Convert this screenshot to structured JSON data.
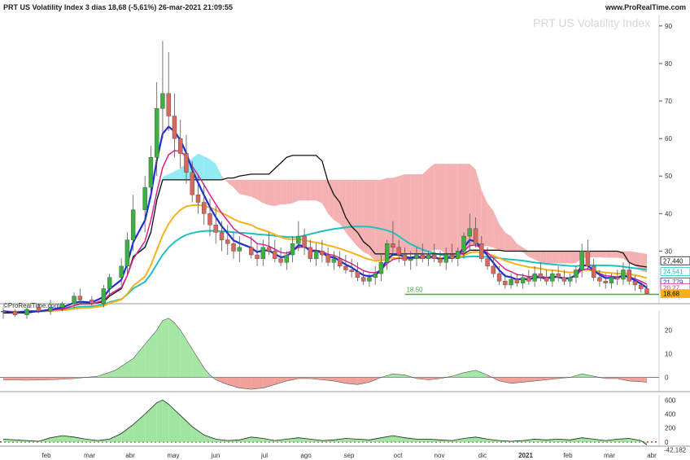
{
  "header": {
    "title": "PRT US Volatility Index 3 días 18,68 (-5,61%) 26-mar-2021 21:09:55",
    "site": "www.ProRealTime.com",
    "watermark": "PRT US Volatility Index",
    "credit": "©ProRealTime.com"
  },
  "colors": {
    "up": "#3cb043",
    "down": "#d9675b",
    "blue": "#1c2fd6",
    "magenta": "#e0208a",
    "black": "#111111",
    "orange": "#f5b21b",
    "teal": "#20c0c0",
    "cloud_red": "#f3a3a3",
    "cloud_cyan": "#7fe8f0",
    "support": "#3cb043",
    "price_box": "#f5b21b"
  },
  "chart_data": [
    {
      "type": "candlestick",
      "panel": "price",
      "title": "PRT US Volatility Index 3 días",
      "x": [
        "feb",
        "mar",
        "abr",
        "may",
        "jun",
        "jul",
        "ago",
        "sep",
        "oct",
        "nov",
        "dic",
        "2021",
        "feb",
        "mar",
        "abr"
      ],
      "y_ticks": [
        30,
        40,
        50,
        60,
        70,
        80,
        90
      ],
      "ylim": [
        16,
        93
      ],
      "candles": [
        [
          0,
          14,
          15,
          12,
          14
        ],
        [
          2,
          14,
          14.5,
          12.5,
          13
        ],
        [
          4,
          13,
          15,
          12,
          14.5
        ],
        [
          6,
          15,
          16,
          13.5,
          14
        ],
        [
          8,
          14,
          17,
          13,
          15
        ],
        [
          10,
          15,
          16.5,
          14,
          16
        ],
        [
          12,
          16,
          19,
          15,
          18
        ],
        [
          13,
          18,
          20,
          16,
          17
        ],
        [
          15,
          17,
          18,
          15.5,
          16
        ],
        [
          17,
          16,
          21,
          15,
          20
        ],
        [
          18,
          20,
          24,
          18,
          23
        ],
        [
          20,
          23,
          28,
          21,
          26
        ],
        [
          21,
          26,
          35,
          24,
          33
        ],
        [
          22,
          33,
          45,
          30,
          41
        ],
        [
          24,
          41,
          50,
          35,
          47
        ],
        [
          25,
          47,
          58,
          44,
          55
        ],
        [
          26,
          55,
          75,
          50,
          68
        ],
        [
          27,
          68,
          86,
          60,
          72
        ],
        [
          28,
          72,
          83,
          62,
          66
        ],
        [
          29,
          66,
          72,
          55,
          60
        ],
        [
          30,
          60,
          65,
          52,
          56
        ],
        [
          31,
          56,
          61,
          48,
          51
        ],
        [
          32,
          51,
          54,
          43,
          45
        ],
        [
          33,
          45,
          50,
          40,
          43
        ],
        [
          34,
          43,
          48,
          37,
          40
        ],
        [
          35,
          40,
          44,
          34,
          37
        ],
        [
          36,
          37,
          42,
          32,
          35
        ],
        [
          37,
          35,
          38,
          30,
          33
        ],
        [
          38,
          33,
          37,
          29,
          32
        ],
        [
          39,
          32,
          35,
          28,
          30
        ],
        [
          40,
          30,
          34,
          27,
          31
        ],
        [
          42,
          31,
          34,
          28,
          29
        ],
        [
          43,
          29,
          32,
          26,
          28
        ],
        [
          44,
          28,
          33,
          26,
          31
        ],
        [
          45,
          31,
          35,
          29,
          30
        ],
        [
          46,
          30,
          33,
          27,
          28
        ],
        [
          47,
          28,
          31,
          26,
          27
        ],
        [
          48,
          27,
          30,
          25,
          29
        ],
        [
          49,
          29,
          34,
          27,
          32
        ],
        [
          50,
          32,
          38,
          30,
          34
        ],
        [
          51,
          34,
          36,
          29,
          31
        ],
        [
          52,
          31,
          33,
          27,
          28
        ],
        [
          53,
          28,
          32,
          26,
          30
        ],
        [
          54,
          30,
          33,
          27,
          29
        ],
        [
          55,
          29,
          31,
          26,
          27
        ],
        [
          56,
          27,
          30,
          25,
          28
        ],
        [
          57,
          28,
          30,
          25.5,
          26
        ],
        [
          58,
          26,
          29,
          24,
          25
        ],
        [
          59,
          25,
          28,
          23,
          24.5
        ],
        [
          60,
          24.5,
          27,
          22,
          23
        ],
        [
          61,
          23,
          25,
          21,
          22
        ],
        [
          62,
          22,
          24,
          20.5,
          23
        ],
        [
          63,
          23,
          26,
          21,
          24
        ],
        [
          64,
          24,
          29,
          22,
          27
        ],
        [
          65,
          27,
          33,
          25,
          32
        ],
        [
          66,
          32,
          38,
          29,
          31
        ],
        [
          67,
          31,
          33,
          27,
          29
        ],
        [
          68,
          29,
          31,
          26,
          27.5
        ],
        [
          69,
          27.5,
          30,
          25,
          28
        ],
        [
          70,
          28,
          31,
          26,
          29
        ],
        [
          71,
          29,
          32,
          27,
          28
        ],
        [
          72,
          28,
          30,
          26,
          29
        ],
        [
          73,
          29,
          32,
          27,
          28
        ],
        [
          74,
          28,
          30,
          26,
          27
        ],
        [
          75,
          27,
          31,
          25,
          29
        ],
        [
          76,
          29,
          32,
          27,
          28
        ],
        [
          77,
          28,
          31,
          26,
          30
        ],
        [
          78,
          30,
          35,
          28,
          34
        ],
        [
          79,
          34,
          40,
          30,
          36
        ],
        [
          80,
          36,
          39,
          31,
          32
        ],
        [
          81,
          32,
          34,
          27,
          28
        ],
        [
          82,
          28,
          31,
          25,
          26
        ],
        [
          83,
          26,
          28,
          23,
          24
        ],
        [
          84,
          24,
          26,
          21,
          22
        ],
        [
          85,
          22,
          24,
          20,
          21
        ],
        [
          86,
          21,
          24,
          20,
          22.5
        ],
        [
          87,
          22.5,
          24,
          20.5,
          21.5
        ],
        [
          88,
          21.5,
          24,
          20,
          23
        ],
        [
          89,
          23,
          25,
          21,
          22
        ],
        [
          90,
          22,
          26,
          20.5,
          24
        ],
        [
          91,
          24,
          27,
          22,
          23
        ],
        [
          92,
          23,
          25,
          21,
          22
        ],
        [
          93,
          22,
          25,
          20.5,
          24
        ],
        [
          94,
          24,
          26,
          22,
          23
        ],
        [
          95,
          23,
          25,
          21,
          22
        ],
        [
          96,
          22,
          24,
          20.5,
          23
        ],
        [
          97,
          23,
          26,
          21.5,
          25
        ],
        [
          98,
          25,
          32,
          23,
          30
        ],
        [
          99,
          30,
          33,
          25,
          26
        ],
        [
          100,
          26,
          28,
          22,
          23
        ],
        [
          101,
          23,
          25,
          20.5,
          22
        ],
        [
          102,
          22,
          24,
          20,
          21.5
        ],
        [
          103,
          21.5,
          24,
          20,
          23
        ],
        [
          104,
          23,
          25,
          21,
          22.5
        ],
        [
          105,
          22.5,
          27,
          21,
          25
        ],
        [
          106,
          25,
          27,
          21,
          22
        ],
        [
          107,
          22,
          23.5,
          19.5,
          21
        ],
        [
          108,
          21,
          22,
          19,
          20
        ],
        [
          109,
          20,
          21,
          18.5,
          18.68
        ]
      ],
      "overlay_series": [
        "blue",
        "magenta",
        "black",
        "orange",
        "teal",
        "cloud"
      ],
      "support_label": "18,50",
      "support_value": 18.5,
      "right_labels": [
        "27,440",
        "24,541",
        "21,779",
        "20,27",
        "18,68"
      ],
      "right_values": [
        27.44,
        24.541,
        21.779,
        20.27,
        18.68
      ]
    },
    {
      "type": "area",
      "panel": "oscillator-1",
      "y_ticks": [
        0,
        10,
        20
      ],
      "ylim": [
        -6,
        27
      ],
      "values": [
        [
          0,
          -1
        ],
        [
          4,
          -1.2
        ],
        [
          8,
          -1
        ],
        [
          12,
          -0.5
        ],
        [
          16,
          0.5
        ],
        [
          19,
          3
        ],
        [
          22,
          8
        ],
        [
          24,
          14
        ],
        [
          26,
          20
        ],
        [
          27,
          24
        ],
        [
          28,
          25
        ],
        [
          29,
          23
        ],
        [
          30,
          20
        ],
        [
          31,
          16
        ],
        [
          32,
          12
        ],
        [
          33,
          8
        ],
        [
          34,
          4
        ],
        [
          35,
          1
        ],
        [
          36,
          -1
        ],
        [
          38,
          -3
        ],
        [
          40,
          -4.5
        ],
        [
          42,
          -5
        ],
        [
          44,
          -4.5
        ],
        [
          46,
          -3
        ],
        [
          48,
          -1.5
        ],
        [
          50,
          -0.5
        ],
        [
          52,
          -0.5
        ],
        [
          54,
          -1
        ],
        [
          56,
          -1.5
        ],
        [
          58,
          -2.5
        ],
        [
          60,
          -3
        ],
        [
          62,
          -2
        ],
        [
          64,
          0
        ],
        [
          66,
          1.5
        ],
        [
          68,
          1
        ],
        [
          70,
          -0.5
        ],
        [
          72,
          -1
        ],
        [
          74,
          -0.5
        ],
        [
          76,
          0.5
        ],
        [
          78,
          2
        ],
        [
          80,
          3
        ],
        [
          82,
          1
        ],
        [
          84,
          -1.5
        ],
        [
          86,
          -2.5
        ],
        [
          88,
          -2
        ],
        [
          90,
          -1.5
        ],
        [
          92,
          -1
        ],
        [
          94,
          -0.5
        ],
        [
          96,
          0
        ],
        [
          98,
          1.5
        ],
        [
          100,
          0.5
        ],
        [
          102,
          -0.5
        ],
        [
          104,
          -0.5
        ],
        [
          106,
          -1.5
        ],
        [
          108,
          -1.8
        ],
        [
          109,
          -2
        ]
      ]
    },
    {
      "type": "area",
      "panel": "oscillator-2",
      "y_ticks": [
        0,
        200,
        400,
        600
      ],
      "ylim": [
        -60,
        650
      ],
      "last_value_label": "-42,182",
      "values": [
        [
          0,
          40
        ],
        [
          4,
          20
        ],
        [
          6,
          10
        ],
        [
          8,
          60
        ],
        [
          10,
          90
        ],
        [
          12,
          70
        ],
        [
          14,
          40
        ],
        [
          16,
          20
        ],
        [
          18,
          40
        ],
        [
          20,
          120
        ],
        [
          22,
          250
        ],
        [
          24,
          400
        ],
        [
          26,
          560
        ],
        [
          27,
          600
        ],
        [
          28,
          540
        ],
        [
          30,
          380
        ],
        [
          32,
          220
        ],
        [
          34,
          100
        ],
        [
          36,
          40
        ],
        [
          38,
          20
        ],
        [
          40,
          30
        ],
        [
          42,
          70
        ],
        [
          44,
          50
        ],
        [
          46,
          20
        ],
        [
          48,
          40
        ],
        [
          50,
          60
        ],
        [
          52,
          40
        ],
        [
          54,
          20
        ],
        [
          56,
          30
        ],
        [
          58,
          50
        ],
        [
          60,
          40
        ],
        [
          62,
          30
        ],
        [
          64,
          60
        ],
        [
          66,
          90
        ],
        [
          68,
          60
        ],
        [
          70,
          40
        ],
        [
          72,
          40
        ],
        [
          74,
          30
        ],
        [
          76,
          20
        ],
        [
          78,
          50
        ],
        [
          80,
          70
        ],
        [
          82,
          40
        ],
        [
          84,
          20
        ],
        [
          86,
          10
        ],
        [
          88,
          20
        ],
        [
          90,
          40
        ],
        [
          92,
          30
        ],
        [
          94,
          40
        ],
        [
          96,
          30
        ],
        [
          98,
          60
        ],
        [
          100,
          40
        ],
        [
          102,
          20
        ],
        [
          104,
          40
        ],
        [
          106,
          50
        ],
        [
          108,
          20
        ],
        [
          109,
          -42
        ]
      ]
    }
  ]
}
